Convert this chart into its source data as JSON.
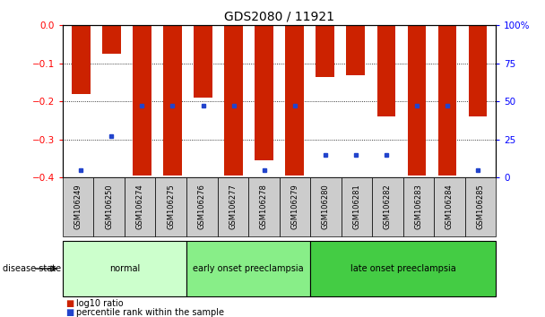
{
  "title": "GDS2080 / 11921",
  "samples": [
    "GSM106249",
    "GSM106250",
    "GSM106274",
    "GSM106275",
    "GSM106276",
    "GSM106277",
    "GSM106278",
    "GSM106279",
    "GSM106280",
    "GSM106281",
    "GSM106282",
    "GSM106283",
    "GSM106284",
    "GSM106285"
  ],
  "log10_ratio": [
    -0.18,
    -0.075,
    -0.395,
    -0.395,
    -0.19,
    -0.395,
    -0.355,
    -0.395,
    -0.135,
    -0.13,
    -0.24,
    -0.395,
    -0.395,
    -0.24
  ],
  "percentile_rank": [
    5,
    27,
    47,
    47,
    47,
    47,
    5,
    47,
    15,
    15,
    15,
    47,
    47,
    5
  ],
  "groups": [
    {
      "label": "normal",
      "start": 0,
      "end": 4,
      "color": "#ccffcc"
    },
    {
      "label": "early onset preeclampsia",
      "start": 4,
      "end": 8,
      "color": "#88ee88"
    },
    {
      "label": "late onset preeclampsia",
      "start": 8,
      "end": 14,
      "color": "#44cc44"
    }
  ],
  "ylim_left": [
    -0.4,
    0
  ],
  "ylim_right": [
    0,
    100
  ],
  "yticks_left": [
    0,
    -0.1,
    -0.2,
    -0.3,
    -0.4
  ],
  "yticks_right": [
    0,
    25,
    50,
    75,
    100
  ],
  "bar_color": "#cc2200",
  "dot_color": "#2244cc",
  "tick_label_bg": "#cccccc",
  "bar_width": 0.6
}
